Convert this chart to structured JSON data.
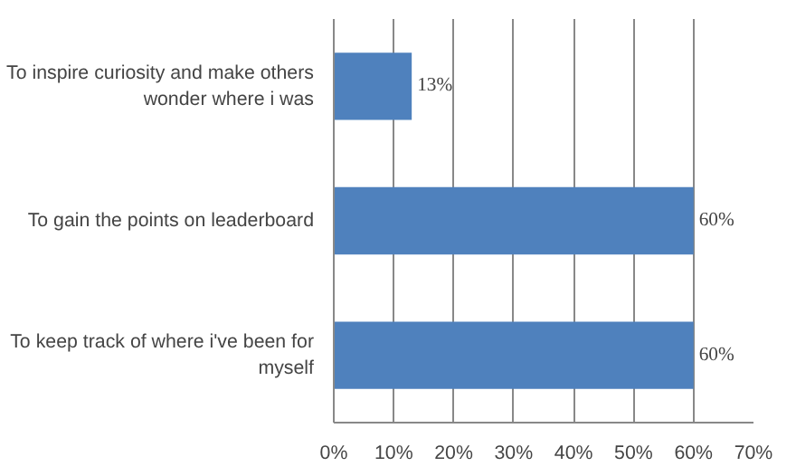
{
  "chart_data": {
    "type": "bar",
    "orientation": "horizontal",
    "categories": [
      "To inspire curiosity and make others wonder where i was",
      "To gain the points on leaderboard",
      "To keep track of where i've been for myself"
    ],
    "values": [
      13,
      60,
      60
    ],
    "color": "#4f81bd",
    "value_labels": [
      "13%",
      "60%",
      "60%"
    ],
    "xlim": [
      0,
      70
    ],
    "xticks": [
      {
        "value": 0,
        "label": "0%"
      },
      {
        "value": 10,
        "label": "10%"
      },
      {
        "value": 20,
        "label": "20%"
      },
      {
        "value": 30,
        "label": "30%"
      },
      {
        "value": 40,
        "label": "40%"
      },
      {
        "value": 50,
        "label": "50%"
      },
      {
        "value": 60,
        "label": "60%"
      },
      {
        "value": 70,
        "label": "70%"
      }
    ],
    "grid": "x"
  }
}
